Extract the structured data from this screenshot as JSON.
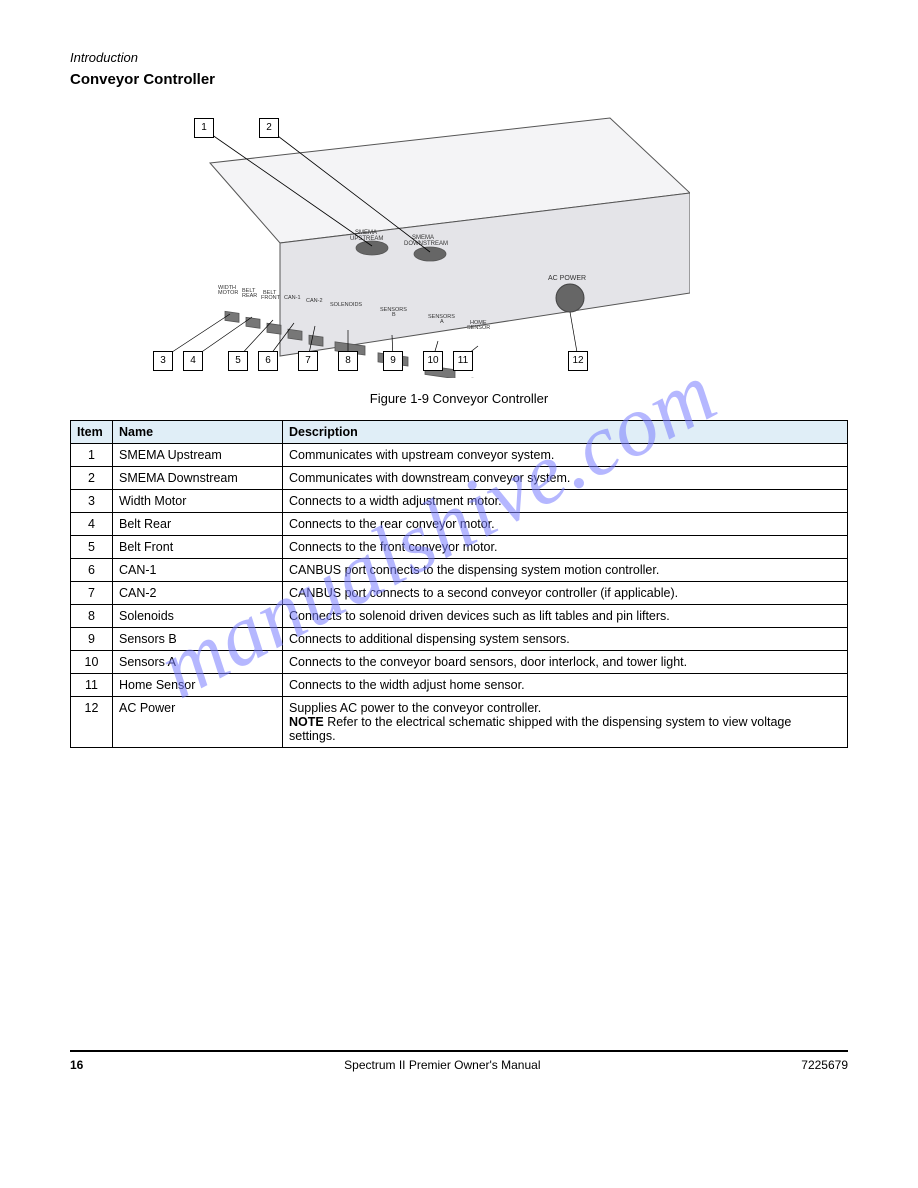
{
  "section_label": "Introduction",
  "heading": "Conveyor Controller",
  "figure": {
    "caption": "Figure 1-9  Conveyor Controller",
    "device_labels": {
      "smema_up": "SMEMA UPSTREAM",
      "smema_down": "SMEMA DOWNSTREAM",
      "ac_power": "AC POWER",
      "ports": "WIDTH MOTOR   BELT REAR   BELT FRONT   CAN-1   CAN-2   SOLENOIDS   SENSORS B   SENSORS A   HOME SENSOR"
    },
    "box_color": "#f0f0f2",
    "outline_color": "#6b6b6b"
  },
  "table": {
    "headers": [
      "Item",
      "Name",
      "Description"
    ],
    "rows": [
      [
        "1",
        "SMEMA Upstream",
        "Communicates with upstream conveyor system."
      ],
      [
        "2",
        "SMEMA Downstream",
        "Communicates with downstream conveyor system."
      ],
      [
        "3",
        "Width Motor",
        "Connects to a width adjustment motor."
      ],
      [
        "4",
        "Belt Rear",
        "Connects to the rear conveyor motor."
      ],
      [
        "5",
        "Belt Front",
        "Connects to the front conveyor motor."
      ],
      [
        "6",
        "CAN-1",
        "CANBUS port connects to the dispensing system motion controller."
      ],
      [
        "7",
        "CAN-2",
        "CANBUS port connects to a second conveyor controller (if applicable)."
      ],
      [
        "8",
        "Solenoids",
        "Connects to solenoid driven devices such as lift tables and pin lifters."
      ],
      [
        "9",
        "Sensors B",
        "Connects to additional dispensing system sensors."
      ],
      [
        "10",
        "Sensors A",
        "Connects to the conveyor board sensors, door interlock, and tower light."
      ],
      [
        "11",
        "Home Sensor",
        "Connects to the width adjust home sensor."
      ],
      [
        "12",
        "AC Power",
        "Supplies AC power to the conveyor controller.\nNOTE  Refer to the electrical schematic shipped with the dispensing system to view voltage settings."
      ]
    ]
  },
  "footer": {
    "pg": "16",
    "doc": "Spectrum II Premier Owner's Manual",
    "pn": "7225679"
  },
  "watermark_text": "manualshive.com"
}
